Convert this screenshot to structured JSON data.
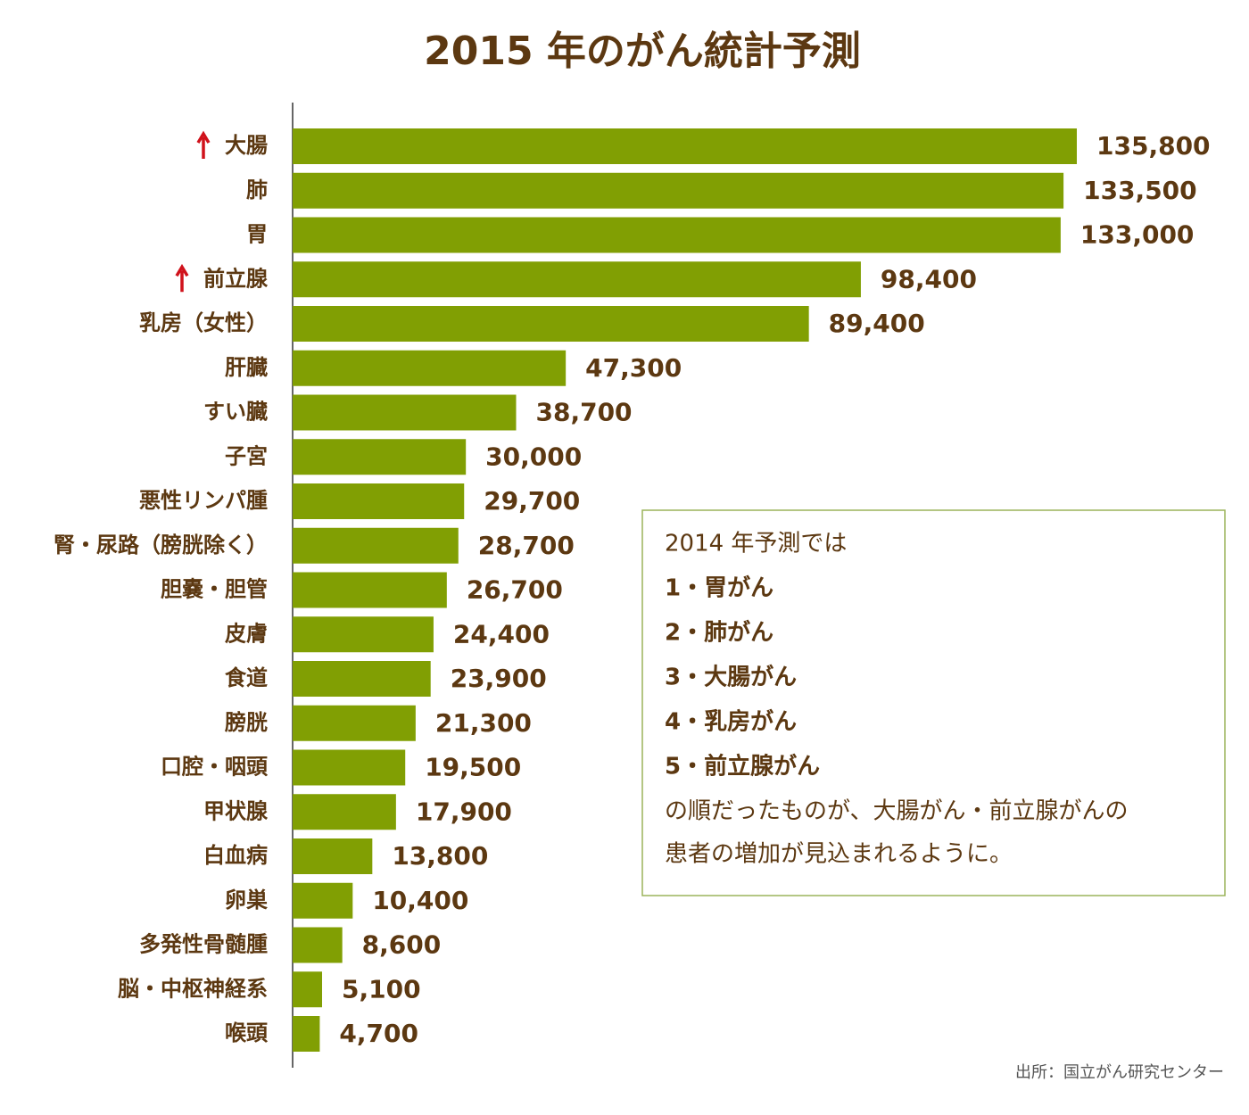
{
  "chart_data": {
    "type": "bar",
    "orientation": "horizontal",
    "title": "2015 年のがん統計予測",
    "categories": [
      "大腸",
      "肺",
      "胃",
      "前立腺",
      "乳房（女性）",
      "肝臓",
      "すい臓",
      "子宮",
      "悪性リンパ腫",
      "腎・尿路（膀胱除く）",
      "胆嚢・胆管",
      "皮膚",
      "食道",
      "膀胱",
      "口腔・咽頭",
      "甲状腺",
      "白血病",
      "卵巣",
      "多発性骨髄腫",
      "脳・中枢神経系",
      "喉頭"
    ],
    "values": [
      135800,
      133500,
      133000,
      98400,
      89400,
      47300,
      38700,
      30000,
      29700,
      28700,
      26700,
      24400,
      23900,
      21300,
      19500,
      17900,
      13800,
      10400,
      8600,
      5100,
      4700
    ],
    "value_labels": [
      "135,800",
      "133,500",
      "133,000",
      "98,400",
      "89,400",
      "47,300",
      "38,700",
      "30,000",
      "29,700",
      "28,700",
      "26,700",
      "24,400",
      "23,900",
      "21,300",
      "19,500",
      "17,900",
      "13,800",
      "10,400",
      "8,600",
      "5,100",
      "4,700"
    ],
    "color": "#819f03",
    "annotation": {
      "title": "2014 年予測では",
      "items": [
        "1・胃がん",
        "2・肺がん",
        "3・大腸がん",
        "4・乳房がん",
        "5・前立腺がん"
      ],
      "note": [
        "の順だったものが、大腸がん・前立腺がんの",
        "患者の増加が見込まれるように。"
      ]
    },
    "source": "出所：国立がん研究センター"
  }
}
